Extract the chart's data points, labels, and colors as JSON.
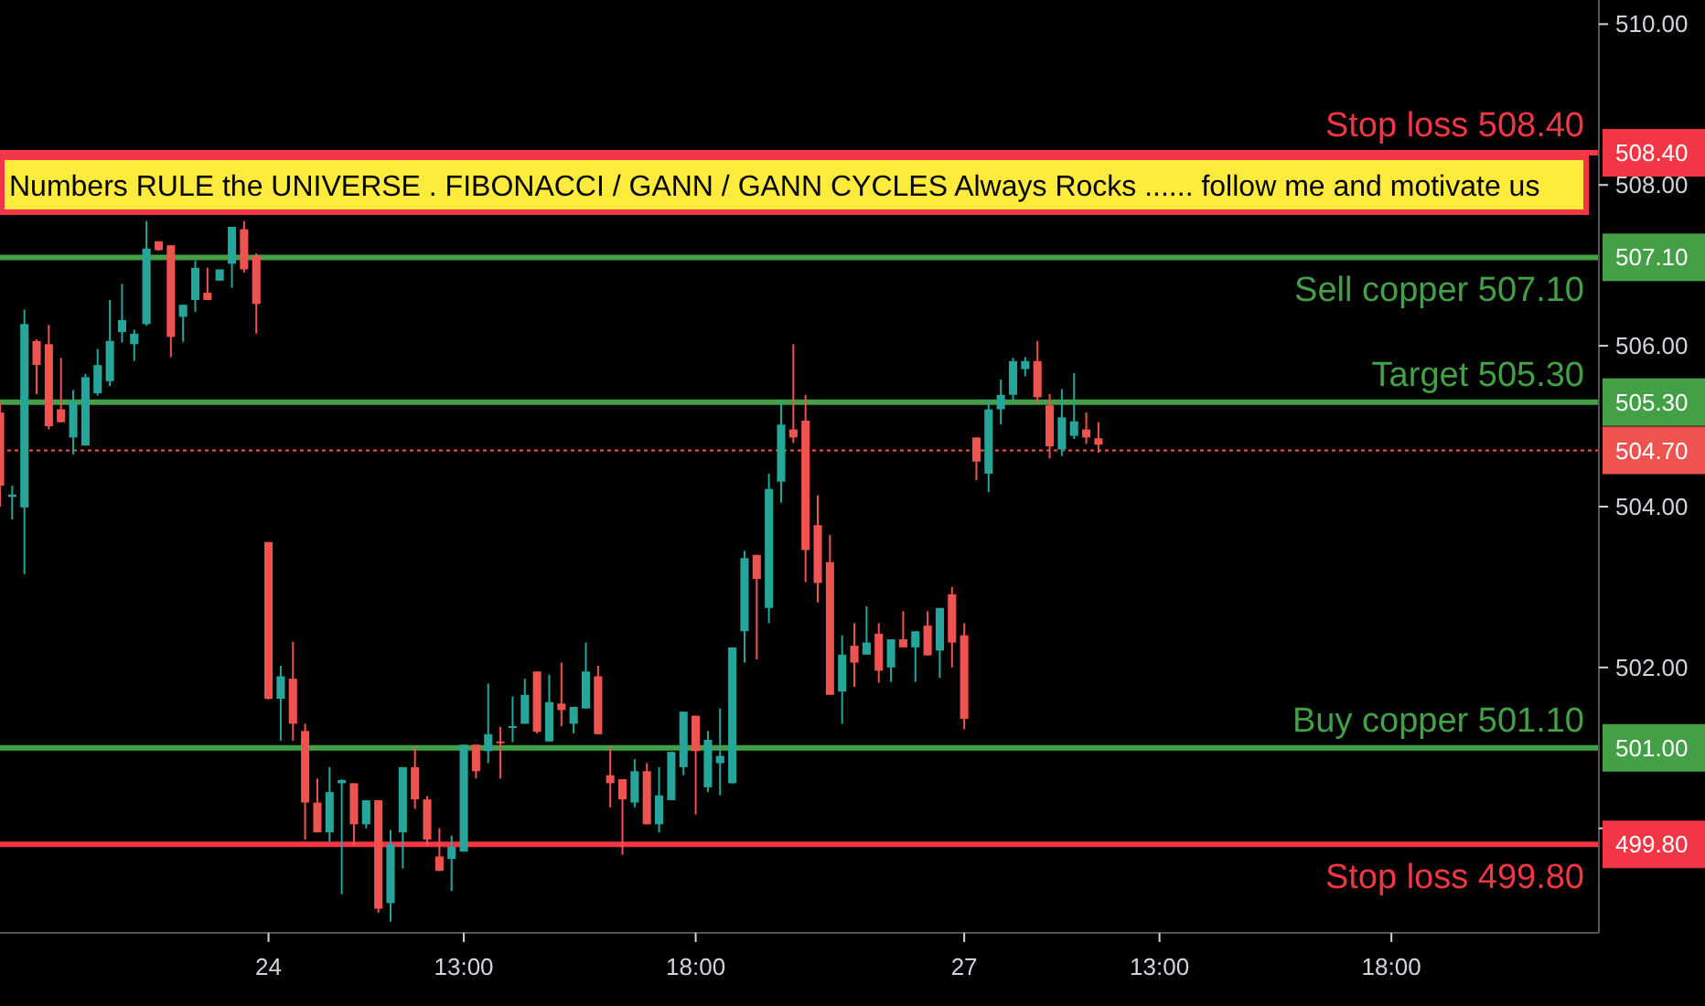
{
  "chart_data": {
    "type": "candlestick",
    "categories": [
      null,
      null,
      null,
      null,
      null,
      null,
      null,
      null,
      null,
      null,
      null,
      null,
      null,
      null,
      null,
      null,
      null,
      null,
      null,
      null,
      null,
      null,
      "24",
      null,
      null,
      null,
      null,
      null,
      null,
      null,
      null,
      null,
      null,
      null,
      null,
      null,
      null,
      null,
      "13:00",
      null,
      null,
      null,
      null,
      null,
      null,
      null,
      null,
      null,
      null,
      null,
      null,
      null,
      null,
      null,
      null,
      null,
      null,
      "18:00",
      null,
      null,
      null,
      null,
      null,
      null,
      null,
      null,
      null,
      null,
      null,
      null,
      null,
      null,
      null,
      null,
      null,
      null,
      null,
      null,
      null,
      "27",
      null,
      null,
      null,
      null,
      null,
      null,
      null,
      null,
      null,
      null,
      null,
      null,
      null,
      null,
      null,
      "13:00",
      null,
      null,
      null,
      null,
      null,
      null,
      null,
      null,
      null,
      null,
      null,
      null,
      null,
      null,
      null,
      null,
      null,
      null,
      "18:00",
      null,
      null,
      null,
      null,
      null,
      null,
      null,
      null,
      null,
      null,
      null,
      null,
      null,
      null,
      null,
      null
    ],
    "ohlc": [
      [
        505.17,
        505.3,
        504.0,
        504.26
      ],
      [
        504.12,
        504.26,
        503.84,
        504.15
      ],
      [
        503.99,
        506.45,
        503.16,
        506.27
      ],
      [
        506.06,
        506.08,
        505.4,
        505.76
      ],
      [
        506.02,
        506.26,
        504.96,
        505.0
      ],
      [
        505.21,
        505.85,
        505.05,
        505.05
      ],
      [
        504.86,
        505.45,
        504.65,
        505.3
      ],
      [
        504.76,
        505.65,
        504.76,
        505.61
      ],
      [
        505.41,
        505.96,
        505.38,
        505.76
      ],
      [
        505.56,
        506.57,
        505.5,
        506.06
      ],
      [
        506.17,
        506.77,
        506.04,
        506.32
      ],
      [
        506.02,
        506.2,
        505.81,
        506.15
      ],
      [
        506.27,
        507.55,
        506.25,
        507.21
      ],
      [
        507.3,
        507.3,
        507.18,
        507.19
      ],
      [
        507.25,
        507.25,
        505.86,
        506.11
      ],
      [
        506.36,
        506.51,
        506.05,
        506.51
      ],
      [
        506.57,
        507.06,
        506.42,
        506.97
      ],
      [
        506.66,
        506.97,
        506.57,
        506.57
      ],
      [
        506.81,
        506.95,
        506.81,
        506.95
      ],
      [
        507.02,
        507.48,
        506.72,
        507.48
      ],
      [
        507.45,
        507.55,
        506.91,
        506.95
      ],
      [
        507.12,
        507.15,
        506.15,
        506.52
      ],
      [
        503.56,
        503.56,
        501.6,
        501.61
      ],
      [
        501.61,
        502.02,
        501.09,
        501.89
      ],
      [
        501.86,
        502.32,
        501.09,
        501.3
      ],
      [
        501.21,
        501.3,
        499.86,
        500.32
      ],
      [
        500.32,
        500.62,
        499.95,
        499.95
      ],
      [
        499.95,
        500.76,
        499.83,
        500.45
      ],
      [
        500.56,
        500.61,
        499.18,
        500.6
      ],
      [
        500.56,
        500.56,
        499.79,
        500.05
      ],
      [
        500.05,
        500.35,
        500.0,
        500.35
      ],
      [
        500.35,
        500.35,
        498.95,
        499.0
      ],
      [
        499.07,
        499.98,
        498.84,
        499.8
      ],
      [
        499.95,
        500.76,
        499.5,
        500.76
      ],
      [
        500.76,
        501.02,
        500.24,
        500.36
      ],
      [
        500.36,
        500.4,
        499.79,
        499.86
      ],
      [
        499.65,
        500.0,
        499.47,
        499.47
      ],
      [
        499.62,
        499.91,
        499.22,
        499.77
      ],
      [
        499.71,
        501.04,
        499.71,
        501.04
      ],
      [
        501.04,
        501.04,
        500.62,
        500.71
      ],
      [
        500.96,
        501.8,
        500.81,
        501.17
      ],
      [
        501.08,
        501.26,
        500.62,
        501.07
      ],
      [
        501.26,
        501.64,
        501.07,
        501.27
      ],
      [
        501.3,
        501.86,
        501.3,
        501.66
      ],
      [
        501.95,
        501.95,
        501.18,
        501.2
      ],
      [
        501.08,
        501.91,
        501.08,
        501.57
      ],
      [
        501.55,
        502.06,
        501.27,
        501.47
      ],
      [
        501.3,
        501.51,
        501.18,
        501.51
      ],
      [
        501.49,
        502.31,
        501.49,
        501.95
      ],
      [
        501.89,
        502.02,
        501.17,
        501.17
      ],
      [
        500.66,
        501.02,
        500.26,
        500.56
      ],
      [
        500.61,
        500.61,
        499.67,
        500.36
      ],
      [
        500.32,
        500.86,
        500.26,
        500.71
      ],
      [
        500.71,
        500.81,
        500.05,
        500.05
      ],
      [
        500.05,
        500.76,
        499.95,
        500.41
      ],
      [
        500.35,
        500.95,
        500.35,
        500.95
      ],
      [
        500.76,
        501.45,
        500.66,
        501.45
      ],
      [
        501.4,
        501.4,
        500.17,
        500.96
      ],
      [
        500.51,
        501.21,
        500.45,
        501.1
      ],
      [
        500.81,
        501.49,
        500.41,
        500.9
      ],
      [
        500.56,
        502.25,
        500.56,
        502.25
      ],
      [
        502.45,
        503.45,
        502.06,
        503.36
      ],
      [
        503.4,
        503.4,
        502.1,
        503.1
      ],
      [
        502.74,
        504.41,
        502.55,
        504.22
      ],
      [
        504.31,
        505.32,
        504.05,
        505.02
      ],
      [
        504.96,
        506.02,
        504.79,
        504.86
      ],
      [
        505.07,
        505.39,
        503.06,
        503.46
      ],
      [
        503.77,
        504.14,
        502.81,
        503.05
      ],
      [
        503.31,
        503.65,
        501.66,
        501.66
      ],
      [
        501.7,
        502.4,
        501.3,
        502.16
      ],
      [
        502.27,
        502.55,
        501.76,
        502.06
      ],
      [
        502.16,
        502.76,
        502.16,
        502.31
      ],
      [
        502.42,
        502.55,
        501.81,
        501.96
      ],
      [
        502.0,
        502.35,
        501.82,
        502.35
      ],
      [
        502.35,
        502.7,
        502.25,
        502.25
      ],
      [
        502.25,
        502.45,
        501.82,
        502.45
      ],
      [
        502.52,
        502.7,
        502.15,
        502.15
      ],
      [
        502.21,
        502.74,
        501.87,
        502.74
      ],
      [
        502.91,
        503.0,
        502.0,
        502.31
      ],
      [
        502.4,
        502.55,
        501.23,
        501.36
      ],
      [
        504.86,
        504.86,
        504.33,
        504.56
      ],
      [
        504.41,
        505.32,
        504.18,
        505.21
      ],
      [
        505.21,
        505.58,
        505.02,
        505.39
      ],
      [
        505.39,
        505.85,
        505.3,
        505.81
      ],
      [
        505.71,
        505.86,
        505.62,
        505.81
      ],
      [
        505.81,
        506.06,
        505.29,
        505.36
      ],
      [
        505.26,
        505.4,
        504.6,
        504.75
      ],
      [
        504.71,
        505.46,
        504.63,
        505.11
      ],
      [
        504.88,
        505.66,
        504.84,
        505.06
      ],
      [
        504.96,
        505.17,
        504.78,
        504.86
      ],
      [
        504.85,
        505.05,
        504.67,
        504.77
      ],
      null,
      null,
      null,
      null,
      null,
      null,
      null,
      null,
      null,
      null,
      null,
      null,
      null,
      null,
      null,
      null,
      null,
      null,
      null,
      null,
      null,
      null,
      null,
      null,
      null,
      null,
      null,
      null,
      null,
      null,
      null,
      null,
      null,
      null,
      null,
      null,
      null,
      null,
      null,
      null
    ],
    "colors": [
      "#ef5350",
      "#26a69a",
      "#26a69a",
      "#ef5350",
      "#ef5350",
      "#ef5350",
      "#26a69a",
      "#26a69a",
      "#26a69a",
      "#26a69a",
      "#26a69a",
      "#26a69a",
      "#26a69a",
      "#ef5350",
      "#ef5350",
      "#26a69a",
      "#26a69a",
      "#ef5350",
      "#26a69a",
      "#26a69a",
      "#ef5350",
      "#ef5350",
      "#ef5350",
      "#26a69a",
      "#ef5350",
      "#ef5350",
      "#ef5350",
      "#26a69a",
      "#26a69a",
      "#ef5350",
      "#26a69a",
      "#ef5350",
      "#26a69a",
      "#26a69a",
      "#ef5350",
      "#ef5350",
      "#ef5350",
      "#26a69a",
      "#26a69a",
      "#ef5350",
      "#26a69a",
      "#ef5350",
      "#26a69a",
      "#26a69a",
      "#ef5350",
      "#26a69a",
      "#ef5350",
      "#26a69a",
      "#26a69a",
      "#ef5350",
      "#ef5350",
      "#ef5350",
      "#26a69a",
      "#ef5350",
      "#26a69a",
      "#26a69a",
      "#26a69a",
      "#ef5350",
      "#26a69a",
      "#26a69a",
      "#26a69a",
      "#26a69a",
      "#ef5350",
      "#26a69a",
      "#26a69a",
      "#ef5350",
      "#ef5350",
      "#ef5350",
      "#ef5350",
      "#26a69a",
      "#ef5350",
      "#26a69a",
      "#ef5350",
      "#26a69a",
      "#ef5350",
      "#26a69a",
      "#ef5350",
      "#26a69a",
      "#ef5350",
      "#ef5350",
      "#ef5350",
      "#26a69a",
      "#26a69a",
      "#26a69a",
      "#26a69a",
      "#ef5350",
      "#ef5350",
      "#26a69a",
      "#26a69a",
      "#ef5350",
      "#ef5350",
      null,
      null,
      null,
      null,
      null,
      null,
      null,
      null,
      null,
      null,
      null,
      null,
      null,
      null,
      null,
      null,
      null,
      null,
      null,
      null,
      null,
      null,
      null,
      null,
      null,
      null,
      null,
      null,
      null,
      null,
      null,
      null,
      null,
      null,
      null,
      null,
      null,
      null,
      null,
      null
    ],
    "ylim": [
      498.7,
      510.3
    ],
    "yticks": [
      {
        "value": 499.8,
        "label": "499.80"
      },
      {
        "value": 500,
        "label": null
      },
      {
        "value": 501.0,
        "label": "501.00"
      },
      {
        "value": 502,
        "label": "502.00"
      },
      {
        "value": 504,
        "label": "504.00"
      },
      {
        "value": 504.7,
        "label": "504.70"
      },
      {
        "value": 505.3,
        "label": "505.30"
      },
      {
        "value": 506,
        "label": "506.00"
      },
      {
        "value": 507.1,
        "label": "507.10"
      },
      {
        "value": 508,
        "label": "508.00"
      },
      {
        "value": 508.4,
        "label": "508.40"
      },
      {
        "value": 510,
        "label": "510.00"
      }
    ],
    "ref_lines": [
      {
        "axis": "y",
        "value": 508.4,
        "label": "Stop loss 508.40",
        "color": "#f23645"
      },
      {
        "axis": "y",
        "value": 507.1,
        "label": "Sell copper 507.10",
        "color": "#43a047"
      },
      {
        "axis": "y",
        "value": 505.3,
        "label": "Target 505.30",
        "color": "#43a047"
      },
      {
        "axis": "y",
        "value": 504.7,
        "color": "#ef5350",
        "line_style": "dotted"
      },
      {
        "axis": "y",
        "value": 501.0,
        "label": "Buy copper 501.10",
        "color": "#43a047"
      },
      {
        "axis": "y",
        "value": 499.8,
        "label": "Stop loss 499.80",
        "color": "#f23645"
      }
    ],
    "annotations": [
      "Numbers RULE the UNIVERSE . FIBONACCI / GANN / GANN CYCLES Always Rocks ...... follow me and motivate us"
    ],
    "grid": false
  }
}
